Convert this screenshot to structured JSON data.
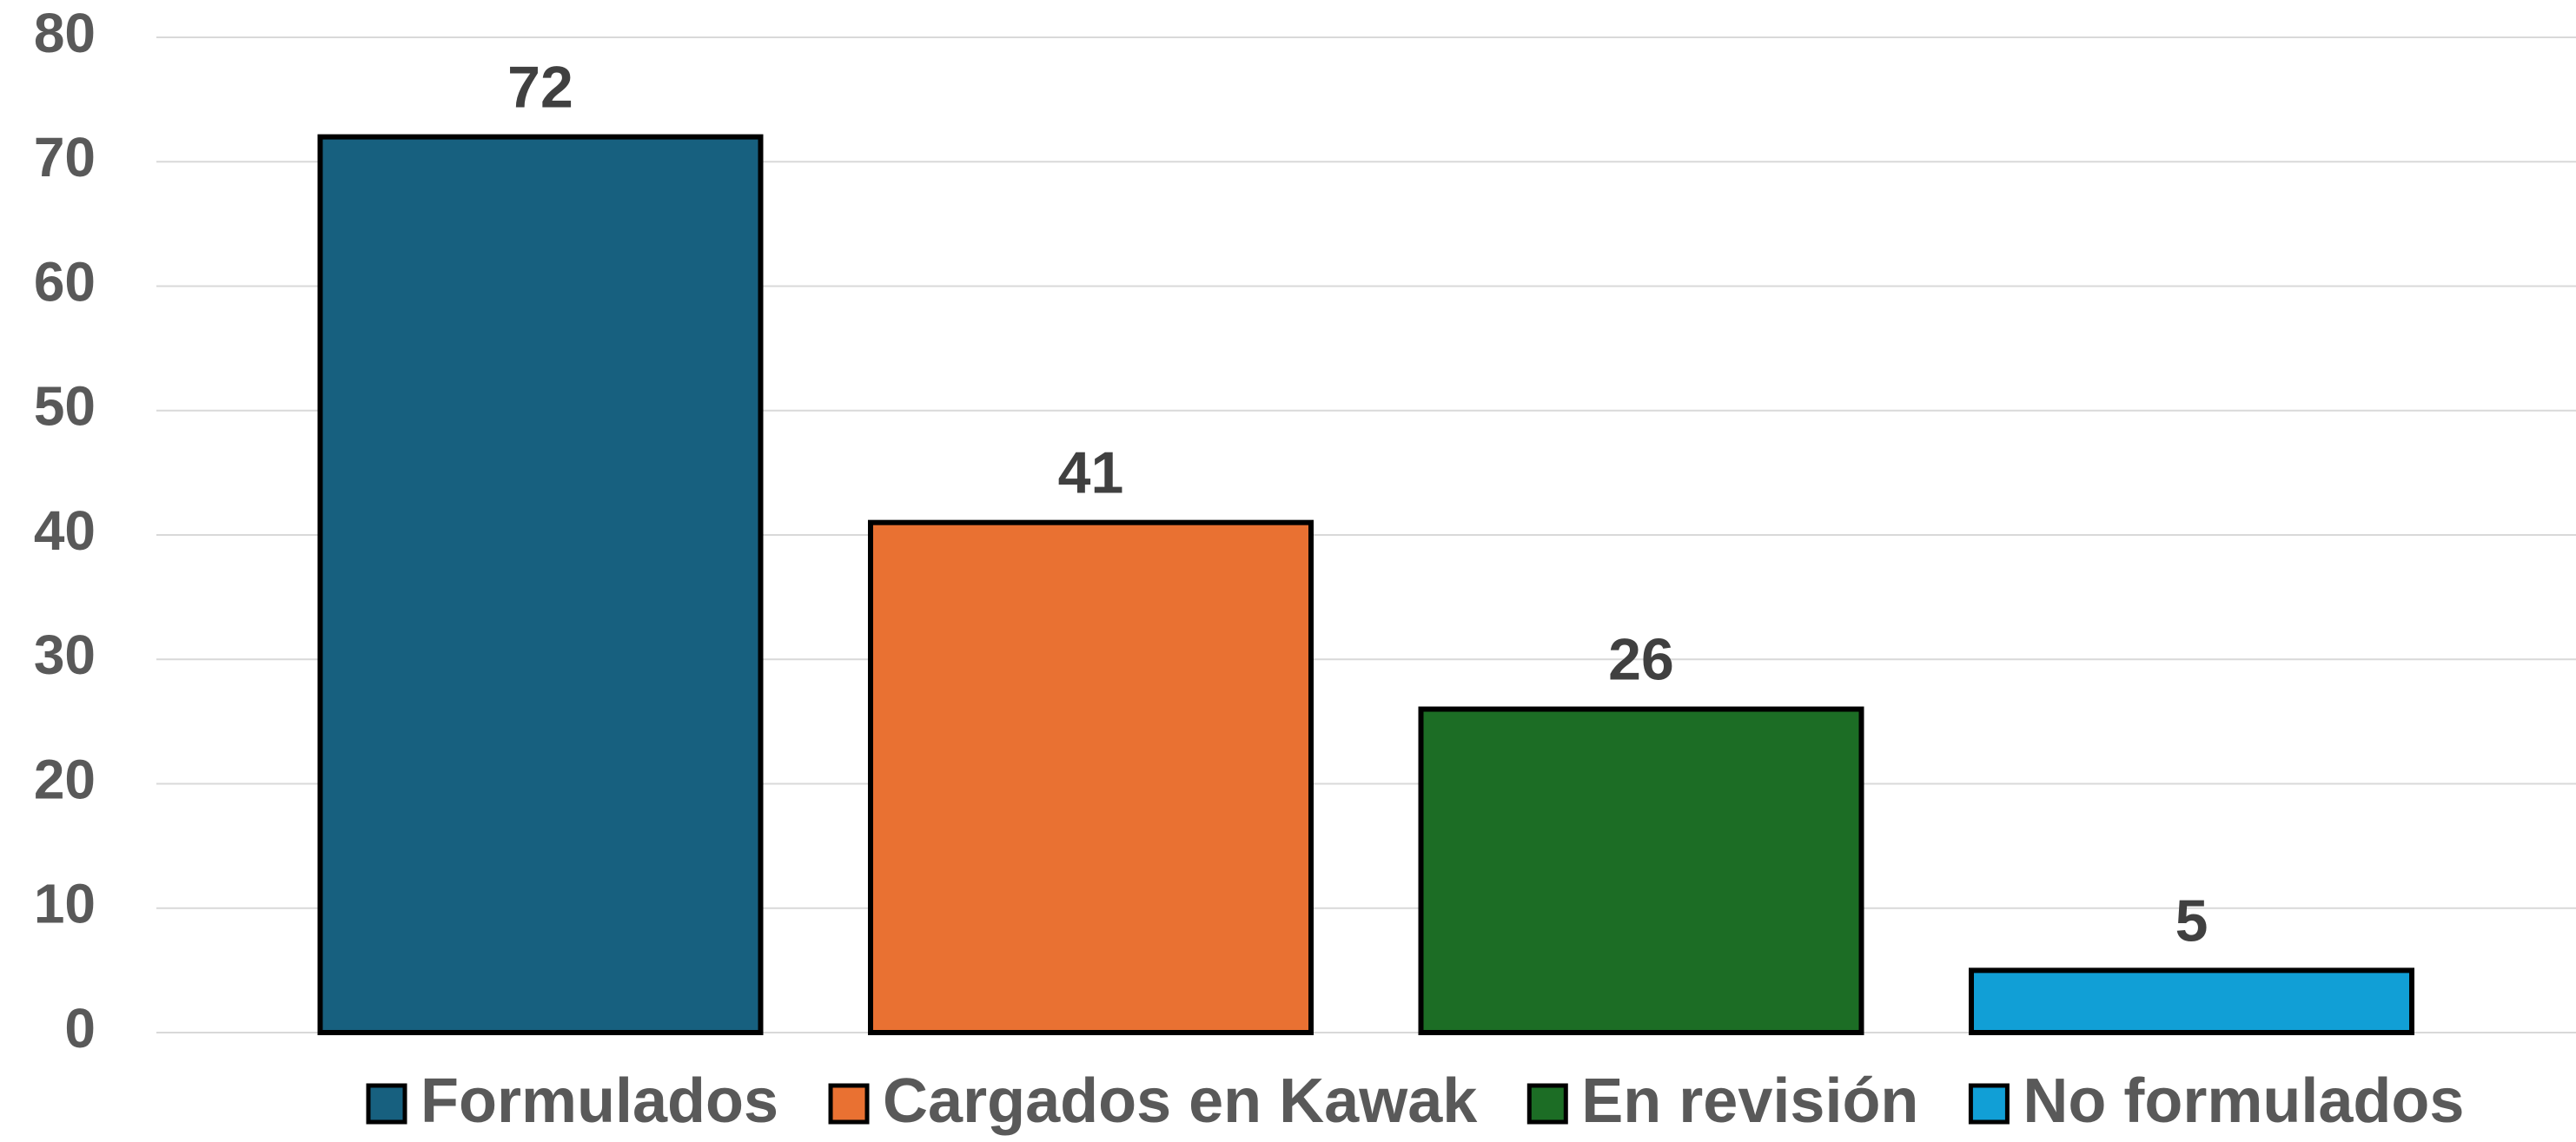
{
  "chart_data": {
    "type": "bar",
    "series": [
      {
        "name": "Formulados",
        "color": "#17607f",
        "values": [
          72
        ]
      },
      {
        "name": "Cargados en Kawak",
        "color": "#e97132",
        "values": [
          41
        ]
      },
      {
        "name": "En revisión",
        "color": "#1c6d25",
        "values": [
          26
        ]
      },
      {
        "name": "No formulados",
        "color": "#119fd6",
        "values": [
          5
        ]
      }
    ],
    "ylim": [
      0,
      80
    ],
    "yticks": [
      0,
      10,
      20,
      30,
      40,
      50,
      60,
      70,
      80
    ],
    "grid": true,
    "legend": "bottom"
  }
}
